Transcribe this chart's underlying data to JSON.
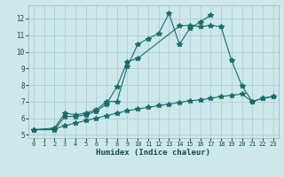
{
  "xlabel": "Humidex (Indice chaleur)",
  "bg_color": "#cce8ea",
  "grid_color": "#aed0d2",
  "line_color": "#1a6b6b",
  "xlim": [
    -0.5,
    23.5
  ],
  "ylim": [
    4.8,
    12.8
  ],
  "xticks": [
    0,
    1,
    2,
    3,
    4,
    5,
    6,
    7,
    8,
    9,
    10,
    11,
    12,
    13,
    14,
    15,
    16,
    17,
    18,
    19,
    20,
    21,
    22,
    23
  ],
  "yticks": [
    5,
    6,
    7,
    8,
    9,
    10,
    11,
    12
  ],
  "line1_x": [
    0,
    2,
    3,
    4,
    5,
    6,
    7,
    8,
    9,
    10,
    11,
    12,
    13,
    14,
    15,
    16,
    17
  ],
  "line1_y": [
    5.3,
    5.4,
    6.3,
    6.2,
    6.3,
    6.5,
    7.0,
    7.0,
    9.1,
    10.45,
    10.8,
    11.1,
    12.3,
    10.45,
    11.4,
    11.8,
    12.2
  ],
  "line2_x": [
    0,
    2,
    3,
    4,
    5,
    6,
    7,
    8,
    9,
    10,
    14,
    15,
    16,
    17,
    18,
    19,
    20,
    21,
    22,
    23
  ],
  "line2_y": [
    5.3,
    5.3,
    6.1,
    6.1,
    6.2,
    6.4,
    6.85,
    7.9,
    9.4,
    9.6,
    11.55,
    11.6,
    11.5,
    11.6,
    11.5,
    9.5,
    7.95,
    7.0,
    7.2,
    7.3
  ],
  "line3_x": [
    0,
    2,
    3,
    4,
    5,
    6,
    7,
    8,
    9,
    10,
    11,
    12,
    13,
    14,
    15,
    16,
    17,
    18,
    19,
    20,
    21,
    22,
    23
  ],
  "line3_y": [
    5.3,
    5.35,
    5.55,
    5.7,
    5.85,
    6.0,
    6.15,
    6.3,
    6.45,
    6.55,
    6.65,
    6.75,
    6.85,
    6.95,
    7.05,
    7.1,
    7.2,
    7.3,
    7.38,
    7.45,
    7.0,
    7.2,
    7.3
  ]
}
